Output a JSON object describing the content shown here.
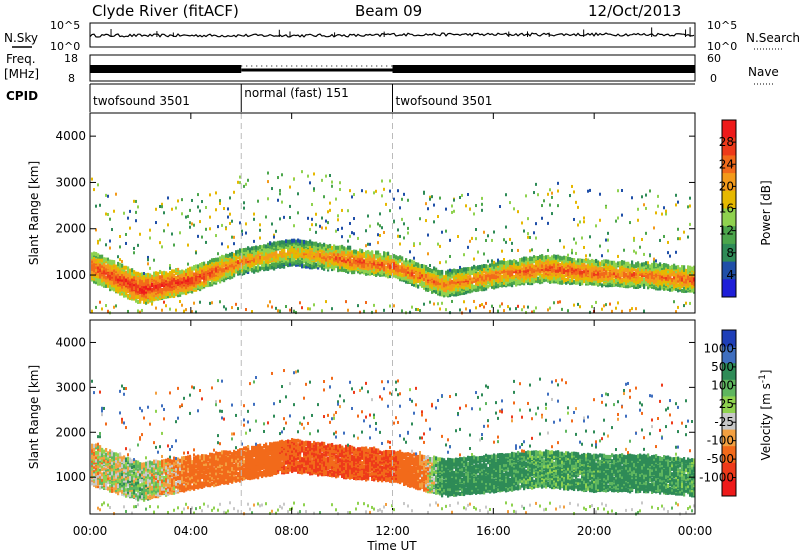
{
  "header": {
    "station": "Clyde River (fitACF)",
    "beam": "Beam 09",
    "date": "12/Oct/2013"
  },
  "panel_labels": {
    "nsky": "N.Sky",
    "nsearch": "N.Search",
    "freq_line1": "Freq.",
    "freq_line2": "[MHz]",
    "nave": "Nave",
    "cpid": "CPID"
  },
  "noise_axis": {
    "left_top": "10^5",
    "left_bottom": "10^0",
    "right_top": "10^5",
    "right_bottom": "10^0"
  },
  "freq_axis": {
    "left": [
      "18",
      "8"
    ],
    "right": [
      "60",
      "0"
    ]
  },
  "cpid_segments": [
    {
      "label": "twofsound 3501",
      "start_hour": 0,
      "end_hour": 6
    },
    {
      "label": "normal (fast) 151",
      "start_hour": 6,
      "end_hour": 12
    },
    {
      "label": "twofsound 3501",
      "start_hour": 12,
      "end_hour": 24
    }
  ],
  "x_axis": {
    "title": "Time UT",
    "ticks": [
      "00:00",
      "04:00",
      "08:00",
      "12:00",
      "16:00",
      "20:00",
      "00:00"
    ]
  },
  "range_axis": {
    "title": "Slant Range [km]",
    "ticks": [
      "1000",
      "2000",
      "3000",
      "4000"
    ]
  },
  "power_scale": {
    "title": "Power [dB]",
    "ticks": [
      "4",
      "8",
      "12",
      "16",
      "20",
      "24",
      "28"
    ],
    "colors": [
      "#1f1fd8",
      "#1f4fa8",
      "#2e8b57",
      "#4ca64c",
      "#8fd24f",
      "#e6b800",
      "#f39a1a",
      "#f26a1a",
      "#ee3a1a",
      "#ee1a1a"
    ]
  },
  "velocity_scale": {
    "title": "Velocity [m s^-1]",
    "ticks": [
      "1000",
      "500",
      "100",
      "25",
      "-25",
      "-100",
      "-500",
      "-1000"
    ],
    "colors": [
      "#1f3fb8",
      "#3f6fbf",
      "#2e8b57",
      "#5fb65f",
      "#8fd24f",
      "#c8c8c8",
      "#f3a040",
      "#f26a1a",
      "#ee3a1a",
      "#ee1a1a"
    ]
  },
  "chart_data": [
    {
      "type": "heatmap",
      "title": "Power",
      "xlabel": "Time UT",
      "ylabel": "Slant Range [km]",
      "x_range_hours": [
        0,
        24
      ],
      "ylim_km": [
        180,
        4500
      ],
      "colorbar": {
        "label": "Power [dB]",
        "range": [
          0,
          32
        ],
        "ticks": [
          4,
          8,
          12,
          16,
          20,
          24,
          28
        ]
      },
      "main_band": {
        "hours": [
          0,
          2,
          4,
          6,
          8,
          10,
          12,
          14,
          16,
          18,
          20,
          22,
          24
        ],
        "center_km": [
          1200,
          700,
          900,
          1300,
          1500,
          1350,
          1200,
          800,
          1000,
          1150,
          1050,
          1000,
          900
        ],
        "thickness_km": [
          600,
          600,
          500,
          500,
          550,
          500,
          450,
          500,
          500,
          550,
          500,
          500,
          500
        ],
        "peak_power_db": [
          26,
          30,
          28,
          24,
          20,
          26,
          26,
          24,
          24,
          26,
          26,
          24,
          26
        ]
      }
    },
    {
      "type": "heatmap",
      "title": "Velocity",
      "xlabel": "Time UT",
      "ylabel": "Slant Range [km]",
      "x_range_hours": [
        0,
        24
      ],
      "ylim_km": [
        180,
        4500
      ],
      "colorbar": {
        "label": "Velocity [m s^-1]",
        "ticks": [
          1000,
          500,
          100,
          25,
          -25,
          -100,
          -500,
          -1000
        ]
      },
      "main_band": {
        "hours": [
          0,
          2,
          4,
          6,
          8,
          10,
          12,
          14,
          16,
          18,
          20,
          22,
          24
        ],
        "center_km": [
          1300,
          900,
          1100,
          1300,
          1500,
          1350,
          1250,
          1000,
          1100,
          1200,
          1100,
          1100,
          1000
        ],
        "thickness_km": [
          900,
          800,
          700,
          700,
          700,
          700,
          650,
          800,
          800,
          800,
          800,
          800,
          800
        ],
        "velocity_ms": [
          -25,
          25,
          -100,
          -100,
          -300,
          -300,
          -300,
          100,
          100,
          60,
          80,
          100,
          60
        ]
      }
    }
  ]
}
